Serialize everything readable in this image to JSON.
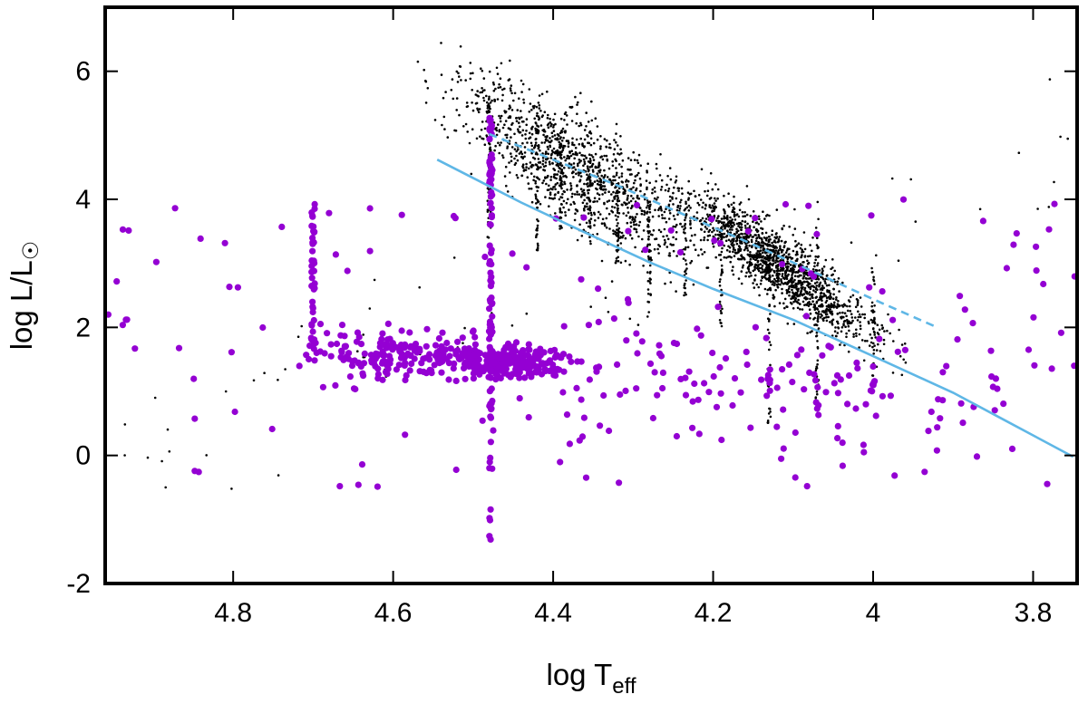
{
  "chart_data": {
    "type": "scatter",
    "title": "",
    "xlabel": "log T",
    "xlabel_subscript": "eff",
    "ylabel": "log L/L",
    "ylabel_symbol": "☉",
    "xlim": [
      4.96,
      3.745
    ],
    "ylim": [
      -2,
      7
    ],
    "x_ticks": [
      {
        "value": 4.8,
        "label": "4.8"
      },
      {
        "value": 4.6,
        "label": "4.6"
      },
      {
        "value": 4.4,
        "label": "4.4"
      },
      {
        "value": 4.2,
        "label": "4.2"
      },
      {
        "value": 4.0,
        "label": "4"
      },
      {
        "value": 3.8,
        "label": "3.8"
      }
    ],
    "y_ticks": [
      {
        "value": -2,
        "label": "-2"
      },
      {
        "value": 0,
        "label": "0"
      },
      {
        "value": 2,
        "label": "2"
      },
      {
        "value": 4,
        "label": "4"
      },
      {
        "value": 6,
        "label": "6"
      }
    ],
    "grid": false,
    "colors": {
      "black_points": "#000000",
      "purple_points": "#9400d3",
      "solid_line": "#5fb7e6",
      "dashed_line": "#5fb7e6",
      "frame": "#000000"
    },
    "lines": [
      {
        "name": "solid-track",
        "style": "solid",
        "x": [
          4.545,
          4.44,
          4.36,
          4.28,
          4.2,
          4.1,
          4.0,
          3.9,
          3.84,
          3.75
        ],
        "y": [
          4.62,
          3.95,
          3.48,
          3.02,
          2.6,
          2.12,
          1.55,
          0.98,
          0.58,
          -0.02
        ]
      },
      {
        "name": "dashed-track",
        "style": "dashed",
        "x": [
          4.48,
          4.4,
          4.32,
          4.24,
          4.16,
          4.08,
          4.0,
          3.92
        ],
        "y": [
          5.02,
          4.62,
          4.22,
          3.78,
          3.35,
          2.9,
          2.44,
          2.0
        ]
      }
    ],
    "point_series": [
      {
        "name": "black-sample",
        "style": "small-dot",
        "count": 2600,
        "clusters": [
          {
            "x_center": 4.12,
            "x_spread": 0.1,
            "slope": 18.0,
            "y_at_4": 1.9,
            "y_scatter": 0.45,
            "weight": 0.55
          },
          {
            "x_center": 4.38,
            "x_spread": 0.12,
            "slope": 15.0,
            "y_at_4": 1.7,
            "y_scatter": 0.75,
            "weight": 0.45
          }
        ],
        "columns": [
          {
            "x": 4.48,
            "y_min": 3.4,
            "y_max": 5.6,
            "n": 50
          },
          {
            "x": 4.42,
            "y_min": 3.2,
            "y_max": 5.2,
            "n": 45
          },
          {
            "x": 4.39,
            "y_min": 3.5,
            "y_max": 4.9,
            "n": 40
          },
          {
            "x": 4.355,
            "y_min": 3.2,
            "y_max": 4.7,
            "n": 40
          },
          {
            "x": 4.32,
            "y_min": 3.0,
            "y_max": 4.5,
            "n": 35
          },
          {
            "x": 4.28,
            "y_min": 2.1,
            "y_max": 4.0,
            "n": 45
          },
          {
            "x": 4.235,
            "y_min": 2.5,
            "y_max": 3.8,
            "n": 30
          },
          {
            "x": 4.19,
            "y_min": 2.0,
            "y_max": 3.5,
            "n": 35
          },
          {
            "x": 4.13,
            "y_min": 0.5,
            "y_max": 3.5,
            "n": 55
          },
          {
            "x": 4.07,
            "y_min": 0.6,
            "y_max": 4.0,
            "n": 60
          },
          {
            "x": 4.0,
            "y_min": 1.0,
            "y_max": 3.0,
            "n": 35
          }
        ]
      },
      {
        "name": "purple-sample",
        "style": "large-dot",
        "count": 520,
        "clusters": [
          {
            "x_center": 4.46,
            "x_spread": 0.06,
            "y_center": 1.45,
            "y_spread": 0.2,
            "weight": 0.5
          },
          {
            "x_center": 4.6,
            "x_spread": 0.09,
            "y_center": 1.6,
            "y_spread": 0.35,
            "weight": 0.3
          },
          {
            "x_center": 4.2,
            "x_spread": 0.3,
            "y_center": 1.1,
            "y_spread": 0.9,
            "weight": 0.2
          }
        ],
        "columns": [
          {
            "x": 4.7,
            "y_min": 1.4,
            "y_max": 4.2,
            "n": 40
          },
          {
            "x": 4.478,
            "y_min": 0.5,
            "y_max": 5.3,
            "n": 90
          },
          {
            "x": 4.478,
            "y_min": -1.7,
            "y_max": 0.5,
            "n": 10
          },
          {
            "x": 4.13,
            "y_min": 0.9,
            "y_max": 1.4,
            "n": 6
          },
          {
            "x": 4.07,
            "y_min": 0.6,
            "y_max": 1.3,
            "n": 6
          },
          {
            "x": 4.0,
            "y_min": 0.9,
            "y_max": 1.4,
            "n": 6
          }
        ]
      }
    ]
  }
}
